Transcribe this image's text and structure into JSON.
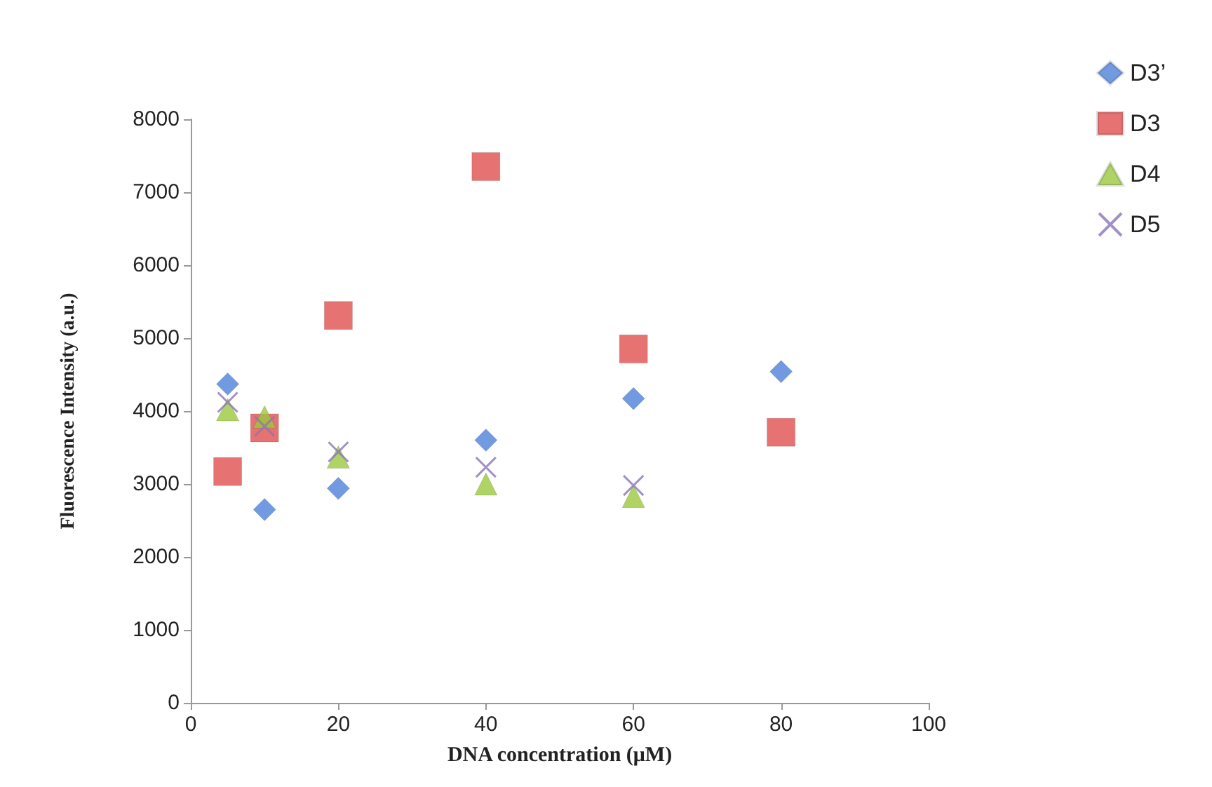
{
  "chart_data": {
    "type": "scatter",
    "xlabel": "DNA concentration (μM)",
    "ylabel": "Fluorescence Intensity (a.u.)",
    "xlim": [
      0,
      100
    ],
    "xticks": [
      0,
      20,
      40,
      60,
      80,
      100
    ],
    "ylim": [
      0,
      8000
    ],
    "yticks": [
      0,
      1000,
      2000,
      3000,
      4000,
      5000,
      6000,
      7000,
      8000
    ],
    "grid": false,
    "legend": "right",
    "series": [
      {
        "name": "D3’",
        "color": "#4f81d9",
        "marker": "diamond",
        "x": [
          5,
          10,
          20,
          40,
          60,
          80
        ],
        "values": [
          4370,
          2650,
          2940,
          3600,
          4170,
          4540
        ]
      },
      {
        "name": "D3",
        "color": "#e0504e",
        "marker": "square",
        "x": [
          5,
          10,
          20,
          40,
          60,
          80
        ],
        "values": [
          3170,
          3770,
          5310,
          7350,
          4850,
          3710
        ]
      },
      {
        "name": "D4",
        "color": "#9bc83f",
        "marker": "triangle",
        "x": [
          5,
          10,
          20,
          40,
          60
        ],
        "values": [
          4020,
          3920,
          3370,
          3000,
          2830
        ]
      },
      {
        "name": "D5",
        "color": "#8c76b5",
        "marker": "cross",
        "x": [
          5,
          10,
          20,
          40,
          60
        ],
        "values": [
          4120,
          3790,
          3440,
          3230,
          2980
        ]
      }
    ]
  }
}
